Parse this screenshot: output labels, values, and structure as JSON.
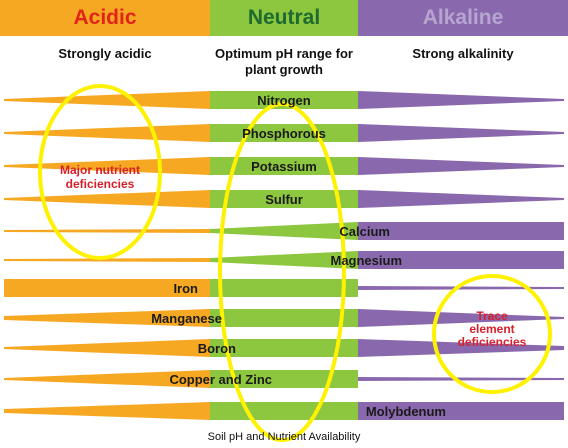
{
  "zones": [
    {
      "key": "acidic",
      "label": "Acidic",
      "color": "#f7a823",
      "text_color": "#e2231a"
    },
    {
      "key": "neutral",
      "label": "Neutral",
      "color": "#8dc63f",
      "text_color": "#1d6b2f"
    },
    {
      "key": "alkaline",
      "label": "Alkaline",
      "color": "#8a68ad",
      "text_color": "#b6a6cf"
    }
  ],
  "subheadings": {
    "acidic": "Strongly acidic",
    "neutral": "Optimum pH range for plant growth",
    "alkaline": "Strong alkalinity"
  },
  "nutrients": [
    "Nitrogen",
    "Phosphorous",
    "Potassium",
    "Sulfur",
    "Calcium",
    "Magnesium",
    "Iron",
    "Manganese",
    "Boron",
    "Copper and Zinc",
    "Molybdenum"
  ],
  "callouts": {
    "major": "Major nutrient deficiencies",
    "trace": "Trace element deficiencies",
    "color": "#d6202b",
    "ring_color": "#fff200"
  },
  "caption": "Soil pH and Nutrient Availability"
}
